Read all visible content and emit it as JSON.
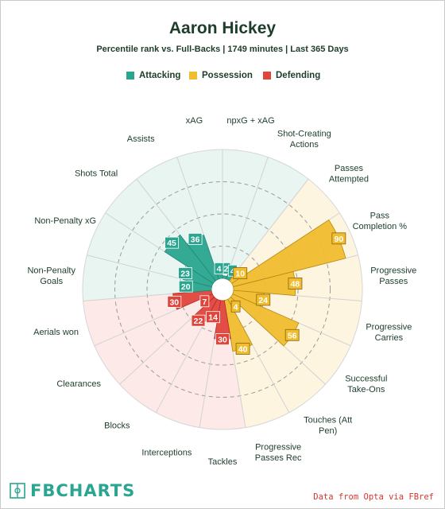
{
  "title": "Aaron Hickey",
  "subtitle": "Percentile rank vs. Full-Backs | 1749 minutes | Last 365 Days",
  "legend": [
    {
      "label": "Attacking",
      "color": "#2aa58f"
    },
    {
      "label": "Possession",
      "color": "#f0bd2e"
    },
    {
      "label": "Defending",
      "color": "#e0453c"
    }
  ],
  "chart_data": {
    "type": "polar-bar",
    "range": [
      0,
      100
    ],
    "grid": true,
    "categories": [
      "npxG + xAG",
      "Shot-Creating\nActions",
      "Passes\nAttempted",
      "Pass\nCompletion %",
      "Progressive\nPasses",
      "Progressive\nCarries",
      "Successful\nTake-Ons",
      "Touches (Att\nPen)",
      "Progressive\nPasses Rec",
      "Tackles",
      "Interceptions",
      "Blocks",
      "Clearances",
      "Aerials won",
      "Non-Penalty\nGoals",
      "Non-Penalty xG",
      "Shots Total",
      "Assists",
      "xAG"
    ],
    "values": [
      2,
      4,
      10,
      90,
      48,
      24,
      56,
      4,
      40,
      30,
      14,
      22,
      7,
      30,
      20,
      23,
      45,
      36,
      4
    ],
    "groups": [
      "Attacking",
      "Attacking",
      "Possession",
      "Possession",
      "Possession",
      "Possession",
      "Possession",
      "Possession",
      "Possession",
      "Defending",
      "Defending",
      "Defending",
      "Defending",
      "Defending",
      "Attacking",
      "Attacking",
      "Attacking",
      "Attacking",
      "Attacking"
    ]
  },
  "footer": {
    "brand": "FBCHARTS",
    "source": "Data from Opta via FBref"
  }
}
